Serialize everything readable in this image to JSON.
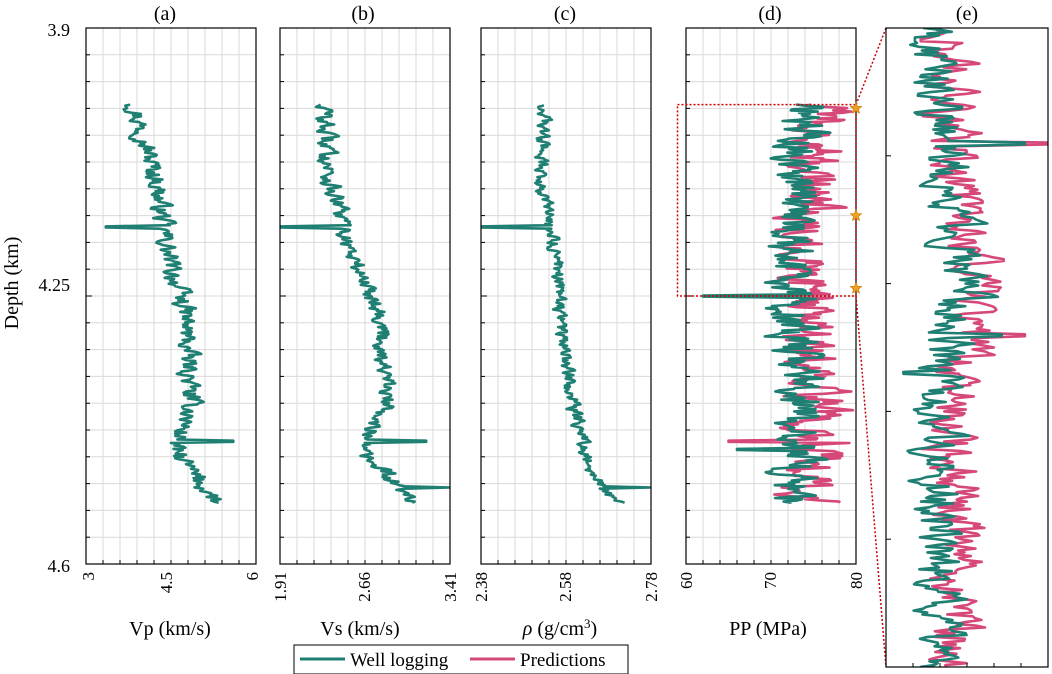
{
  "colors": {
    "well": "#1f7f73",
    "pred": "#d6487a",
    "star": "#f0a020",
    "zoom": "#cc0000",
    "grid": "#d9d9d9"
  },
  "y_axis": {
    "label": "Depth (km)",
    "ticks": [
      "3.9",
      "4.25",
      "4.6"
    ]
  },
  "legend": {
    "well": "Well logging",
    "pred": "Predictions"
  },
  "chart_data": [
    {
      "id": "a",
      "type": "line",
      "title": "(a)",
      "xlabel": "Vp (km/s)",
      "xlim": [
        3,
        6
      ],
      "xticks": [
        "3",
        "4.5",
        "6"
      ],
      "ylim": [
        3.9,
        4.6
      ],
      "depth_range": [
        4.0,
        4.52
      ],
      "series": [
        {
          "name": "Well logging",
          "segments": [
            [
              4.0,
              3.85
            ],
            [
              4.1,
              4.25
            ],
            [
              4.2,
              4.45
            ],
            [
              4.27,
              4.75
            ],
            [
              4.4,
              4.85
            ],
            [
              4.45,
              4.55
            ],
            [
              4.52,
              5.3
            ]
          ],
          "noise": 0.28,
          "spikes": [
            [
              4.16,
              3.35
            ],
            [
              4.44,
              5.6
            ]
          ]
        }
      ]
    },
    {
      "id": "b",
      "type": "line",
      "title": "(b)",
      "xlabel": "Vs (km/s)",
      "xlim": [
        1.91,
        3.41
      ],
      "xticks": [
        "1.91",
        "2.66",
        "3.41"
      ],
      "ylim": [
        3.9,
        4.6
      ],
      "depth_range": [
        4.0,
        4.52
      ],
      "series": [
        {
          "name": "Well logging",
          "segments": [
            [
              4.0,
              2.3
            ],
            [
              4.1,
              2.35
            ],
            [
              4.2,
              2.55
            ],
            [
              4.27,
              2.8
            ],
            [
              4.4,
              2.85
            ],
            [
              4.45,
              2.6
            ],
            [
              4.52,
              3.1
            ]
          ],
          "noise": 0.13,
          "spikes": [
            [
              4.16,
              1.91
            ],
            [
              4.44,
              3.2
            ],
            [
              4.5,
              3.41
            ]
          ]
        }
      ]
    },
    {
      "id": "c",
      "type": "line",
      "title": "(c)",
      "xlabel": "ρ (g/cm3)",
      "xlim": [
        2.38,
        2.78
      ],
      "xticks": [
        "2.38",
        "2.58",
        "2.78"
      ],
      "ylim": [
        3.9,
        4.6
      ],
      "depth_range": [
        4.0,
        4.52
      ],
      "series": [
        {
          "name": "Well logging",
          "segments": [
            [
              4.0,
              2.53
            ],
            [
              4.1,
              2.52
            ],
            [
              4.2,
              2.56
            ],
            [
              4.3,
              2.57
            ],
            [
              4.4,
              2.6
            ],
            [
              4.48,
              2.64
            ],
            [
              4.52,
              2.7
            ]
          ],
          "noise": 0.025,
          "spikes": [
            [
              4.16,
              2.38
            ],
            [
              4.5,
              2.78
            ]
          ]
        }
      ]
    },
    {
      "id": "d",
      "type": "line",
      "title": "(d)",
      "xlabel": "PP (MPa)",
      "xlim": [
        60,
        80
      ],
      "xticks": [
        "60",
        "70",
        "80"
      ],
      "ylim": [
        3.9,
        4.6
      ],
      "depth_range": [
        4.0,
        4.52
      ],
      "zoom_window": {
        "depth": [
          4.0,
          4.25
        ],
        "x": [
          59,
          80
        ]
      },
      "stars": [
        [
          80,
          4.005
        ],
        [
          80,
          4.145
        ],
        [
          80,
          4.24
        ]
      ],
      "series": [
        {
          "name": "Well logging",
          "segments": [
            [
              4.0,
              74
            ],
            [
              4.1,
              73
            ],
            [
              4.2,
              72
            ],
            [
              4.3,
              73
            ],
            [
              4.4,
              73.5
            ],
            [
              4.52,
              72.5
            ]
          ],
          "noise": 4.5,
          "spikes": [
            [
              4.25,
              62
            ],
            [
              4.45,
              66
            ]
          ]
        },
        {
          "name": "Predictions",
          "segments": [
            [
              4.0,
              76
            ],
            [
              4.1,
              75
            ],
            [
              4.2,
              74
            ],
            [
              4.3,
              75
            ],
            [
              4.4,
              75.5
            ],
            [
              4.52,
              74.5
            ]
          ],
          "noise": 5.5,
          "spikes": [
            [
              4.25,
              64
            ],
            [
              4.44,
              65
            ]
          ]
        }
      ]
    },
    {
      "id": "e",
      "type": "line",
      "title": "(e)",
      "xlabel": "",
      "xlim": [
        68,
        82
      ],
      "xticks": [],
      "ylim": [
        4.0,
        4.25
      ],
      "depth_range": [
        4.0,
        4.25
      ],
      "series": [
        {
          "name": "Well logging",
          "segments": [
            [
              4.0,
              72
            ],
            [
              4.05,
              73
            ],
            [
              4.1,
              75
            ],
            [
              4.15,
              72
            ],
            [
              4.2,
              73
            ],
            [
              4.25,
              72
            ]
          ],
          "noise": 3.5,
          "spikes": [
            [
              4.005,
              70.5
            ],
            [
              4.045,
              80
            ],
            [
              4.12,
              78
            ],
            [
              4.135,
              69.5
            ]
          ]
        },
        {
          "name": "Predictions",
          "segments": [
            [
              4.0,
              73
            ],
            [
              4.05,
              74
            ],
            [
              4.1,
              76
            ],
            [
              4.15,
              73.5
            ],
            [
              4.2,
              74.5
            ],
            [
              4.25,
              73.5
            ]
          ],
          "noise": 3.5,
          "spikes": [
            [
              4.005,
              71
            ],
            [
              4.045,
              82
            ],
            [
              4.12,
              80
            ]
          ]
        }
      ]
    }
  ]
}
